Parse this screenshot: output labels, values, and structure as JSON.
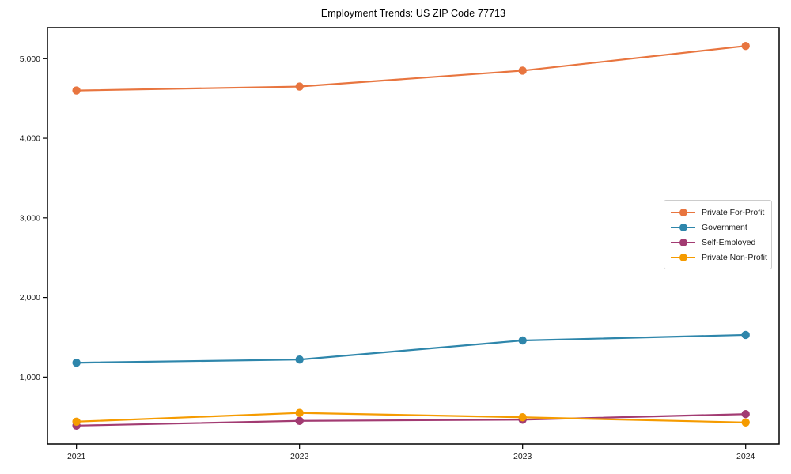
{
  "chart_data": {
    "type": "line",
    "title": "Employment Trends: US ZIP Code 77713",
    "x": [
      2021,
      2022,
      2023,
      2024
    ],
    "x_tick_labels": [
      "2021",
      "2022",
      "2023",
      "2024"
    ],
    "y_tick_values": [
      1000,
      2000,
      3000,
      4000,
      5000
    ],
    "y_tick_labels": [
      "1,000",
      "2,000",
      "3,000",
      "4,000",
      "5,000"
    ],
    "xlim": [
      2020.87,
      2024.15
    ],
    "ylim": [
      160,
      5390
    ],
    "grid": false,
    "legend_position": "center-right",
    "series": [
      {
        "name": "Private For-Profit",
        "color": "#E8753F",
        "values": [
          4600,
          4650,
          4850,
          5160
        ]
      },
      {
        "name": "Government",
        "color": "#2E86AB",
        "values": [
          1180,
          1220,
          1460,
          1530
        ]
      },
      {
        "name": "Self-Employed",
        "color": "#A23B72",
        "values": [
          390,
          450,
          465,
          535
        ]
      },
      {
        "name": "Private Non-Profit",
        "color": "#F59B00",
        "values": [
          440,
          550,
          495,
          430
        ]
      }
    ],
    "axis_color": "#000000",
    "tick_label_color": "#1a1a1a"
  }
}
